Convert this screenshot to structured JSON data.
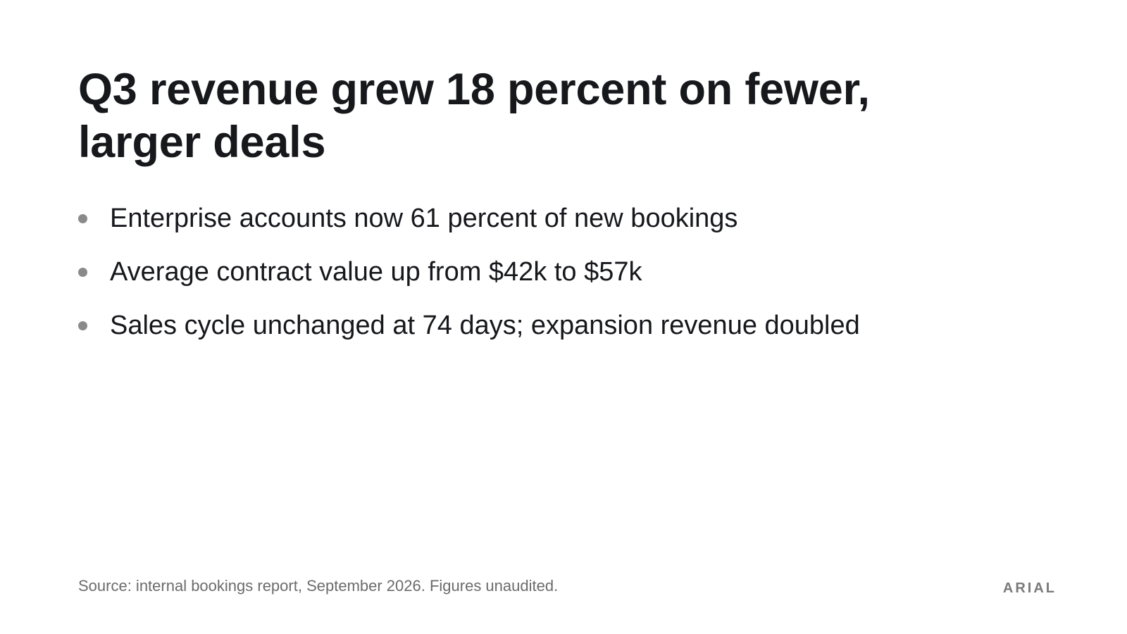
{
  "slide": {
    "title": "Q3 revenue grew 18 percent on fewer, larger deals",
    "bullets": [
      "Enterprise accounts now 61 percent of new bookings",
      "Average contract value up from $42k to $57k",
      "Sales cycle unchanged at 74 days; expansion revenue doubled"
    ],
    "source": "Source: internal bookings report, September 2026. Figures unaudited.",
    "brand": "ARIAL"
  },
  "colors": {
    "background": "#ffffff",
    "text": "#17181c",
    "bullet": "#8a8a8a",
    "muted": "#6b6b6b"
  }
}
